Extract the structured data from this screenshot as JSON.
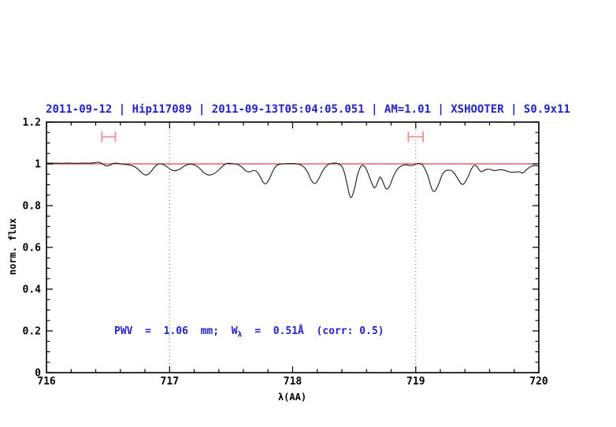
{
  "chart_data": {
    "type": "line",
    "title": "2011-09-12 | Hip117089 | 2011-09-13T05:04:05.051 | AM=1.01 | XSHOOTER | S0.9x11",
    "title_color": "#2222cc",
    "xlabel": "λ(AA)",
    "ylabel": "norm. flux",
    "xlim": [
      716,
      720
    ],
    "ylim": [
      0,
      1.2
    ],
    "x_tick_values": [
      716,
      717,
      718,
      719,
      720
    ],
    "x_tick_labels": [
      "716",
      "717",
      "718",
      "719",
      "720"
    ],
    "x_minor_step": 0.2,
    "y_tick_values": [
      0,
      0.2,
      0.4,
      0.6,
      0.8,
      1,
      1.2
    ],
    "y_tick_labels": [
      "0",
      "0.2",
      "0.4",
      "0.6",
      "0.8",
      "1",
      "1.2"
    ],
    "y_minor_step": 0.05,
    "grid": "off",
    "legend": "none",
    "dotted_vlines": [
      717,
      719
    ],
    "frame_color": "#000000",
    "continuum": {
      "level": 1.0,
      "color": "#e04545"
    },
    "band_markers": [
      {
        "x_start": 716.45,
        "x_end": 716.56,
        "y": 1.13,
        "cap_half": 0.026,
        "color": "#f09090"
      },
      {
        "x_start": 718.94,
        "x_end": 719.06,
        "y": 1.13,
        "cap_half": 0.026,
        "color": "#f09090"
      }
    ],
    "series": [
      {
        "name": "observed-normalized-spectrum",
        "color": "#1a1a1a",
        "points": [
          [
            716.0,
            1.003
          ],
          [
            716.06,
            1.004
          ],
          [
            716.12,
            1.002
          ],
          [
            716.18,
            1.004
          ],
          [
            716.24,
            1.002
          ],
          [
            716.3,
            1.004
          ],
          [
            716.36,
            1.003
          ],
          [
            716.4,
            1.006
          ],
          [
            716.43,
            1.009
          ],
          [
            716.46,
            0.998
          ],
          [
            716.49,
            0.988
          ],
          [
            716.52,
            0.995
          ],
          [
            716.55,
            1.005
          ],
          [
            716.58,
            1.002
          ],
          [
            716.62,
            0.999
          ],
          [
            716.66,
            0.996
          ],
          [
            716.7,
            0.992
          ],
          [
            716.74,
            0.978
          ],
          [
            716.78,
            0.953
          ],
          [
            716.81,
            0.944
          ],
          [
            716.84,
            0.955
          ],
          [
            716.88,
            0.988
          ],
          [
            716.91,
            1.001
          ],
          [
            716.94,
            1.0
          ],
          [
            716.97,
            0.99
          ],
          [
            717.01,
            0.972
          ],
          [
            717.04,
            0.965
          ],
          [
            717.08,
            0.973
          ],
          [
            717.12,
            0.99
          ],
          [
            717.16,
            1.0
          ],
          [
            717.2,
            0.997
          ],
          [
            717.24,
            0.982
          ],
          [
            717.28,
            0.956
          ],
          [
            717.32,
            0.944
          ],
          [
            717.36,
            0.951
          ],
          [
            717.4,
            0.97
          ],
          [
            717.44,
            0.995
          ],
          [
            717.47,
            1.004
          ],
          [
            717.51,
            1.001
          ],
          [
            717.55,
            0.999
          ],
          [
            717.59,
            0.985
          ],
          [
            717.62,
            0.965
          ],
          [
            717.65,
            0.96
          ],
          [
            717.68,
            0.97
          ],
          [
            717.71,
            0.965
          ],
          [
            717.74,
            0.935
          ],
          [
            717.77,
            0.9
          ],
          [
            717.8,
            0.912
          ],
          [
            717.84,
            0.968
          ],
          [
            717.87,
            0.995
          ],
          [
            717.91,
            1.0
          ],
          [
            717.95,
            1.001
          ],
          [
            718.0,
            1.002
          ],
          [
            718.04,
            1.0
          ],
          [
            718.08,
            0.993
          ],
          [
            718.12,
            0.966
          ],
          [
            718.15,
            0.92
          ],
          [
            718.18,
            0.9
          ],
          [
            718.21,
            0.925
          ],
          [
            718.25,
            0.975
          ],
          [
            718.29,
            1.0
          ],
          [
            718.33,
            1.004
          ],
          [
            718.37,
            1.003
          ],
          [
            718.41,
            0.985
          ],
          [
            718.44,
            0.91
          ],
          [
            718.47,
            0.825
          ],
          [
            718.5,
            0.87
          ],
          [
            718.53,
            0.96
          ],
          [
            718.56,
            0.997
          ],
          [
            718.59,
            0.988
          ],
          [
            718.62,
            0.945
          ],
          [
            718.65,
            0.895
          ],
          [
            718.67,
            0.88
          ],
          [
            718.7,
            0.925
          ],
          [
            718.71,
            0.942
          ],
          [
            718.73,
            0.92
          ],
          [
            718.76,
            0.872
          ],
          [
            718.79,
            0.893
          ],
          [
            718.82,
            0.945
          ],
          [
            718.85,
            0.975
          ],
          [
            718.88,
            0.99
          ],
          [
            718.91,
            0.996
          ],
          [
            718.94,
            0.994
          ],
          [
            718.97,
            0.99
          ],
          [
            719.0,
            1.0
          ],
          [
            719.03,
            1.004
          ],
          [
            719.06,
            0.995
          ],
          [
            719.1,
            0.945
          ],
          [
            719.14,
            0.855
          ],
          [
            719.18,
            0.89
          ],
          [
            719.22,
            0.96
          ],
          [
            719.26,
            0.972
          ],
          [
            719.3,
            0.967
          ],
          [
            719.34,
            0.932
          ],
          [
            719.38,
            0.892
          ],
          [
            719.42,
            0.93
          ],
          [
            719.46,
            0.988
          ],
          [
            719.49,
            0.997
          ],
          [
            719.53,
            0.957
          ],
          [
            719.56,
            0.972
          ],
          [
            719.6,
            0.976
          ],
          [
            719.64,
            0.966
          ],
          [
            719.68,
            0.973
          ],
          [
            719.72,
            0.97
          ],
          [
            719.76,
            0.961
          ],
          [
            719.8,
            0.959
          ],
          [
            719.84,
            0.964
          ],
          [
            719.87,
            0.953
          ],
          [
            719.9,
            0.973
          ],
          [
            719.94,
            0.99
          ],
          [
            719.97,
            0.993
          ],
          [
            720.0,
            0.988
          ]
        ]
      }
    ],
    "annotation": {
      "part1": "PWV  =  1.06  mm;  W",
      "sub": "λ",
      "part2": "  =  0.51Å  (corr: 0.5)",
      "color": "#2222cc"
    }
  }
}
